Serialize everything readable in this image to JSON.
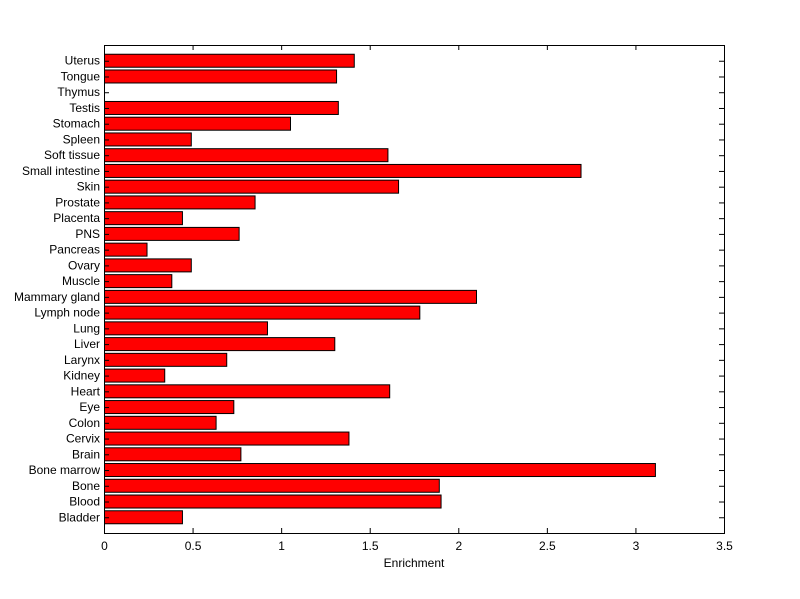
{
  "chart_data": {
    "type": "bar",
    "orientation": "horizontal",
    "title": "",
    "xlabel": "Enrichment",
    "ylabel": "",
    "xlim": [
      0,
      3.5
    ],
    "x_ticks": [
      "0",
      "0.5",
      "1",
      "1.5",
      "2",
      "2.5",
      "3",
      "3.5"
    ],
    "x_tick_values": [
      0,
      0.5,
      1,
      1.5,
      2,
      2.5,
      3,
      3.5
    ],
    "grid": false,
    "bar_color": "#ff0000",
    "bar_edge_color": "#000000",
    "categories": [
      "Uterus",
      "Tongue",
      "Thymus",
      "Testis",
      "Stomach",
      "Spleen",
      "Soft tissue",
      "Small intestine",
      "Skin",
      "Prostate",
      "Placenta",
      "PNS",
      "Pancreas",
      "Ovary",
      "Muscle",
      "Mammary gland",
      "Lymph node",
      "Lung",
      "Liver",
      "Larynx",
      "Kidney",
      "Heart",
      "Eye",
      "Colon",
      "Cervix",
      "Brain",
      "Bone marrow",
      "Bone",
      "Blood",
      "Bladder"
    ],
    "values": [
      1.41,
      1.31,
      0,
      1.32,
      1.05,
      0.49,
      1.6,
      2.69,
      1.66,
      0.85,
      0.44,
      0.76,
      0.24,
      0.49,
      0.38,
      2.1,
      1.78,
      0.92,
      1.3,
      0.69,
      0.34,
      1.61,
      0.73,
      0.63,
      1.38,
      0.77,
      3.11,
      1.89,
      1.9,
      0.44
    ]
  }
}
